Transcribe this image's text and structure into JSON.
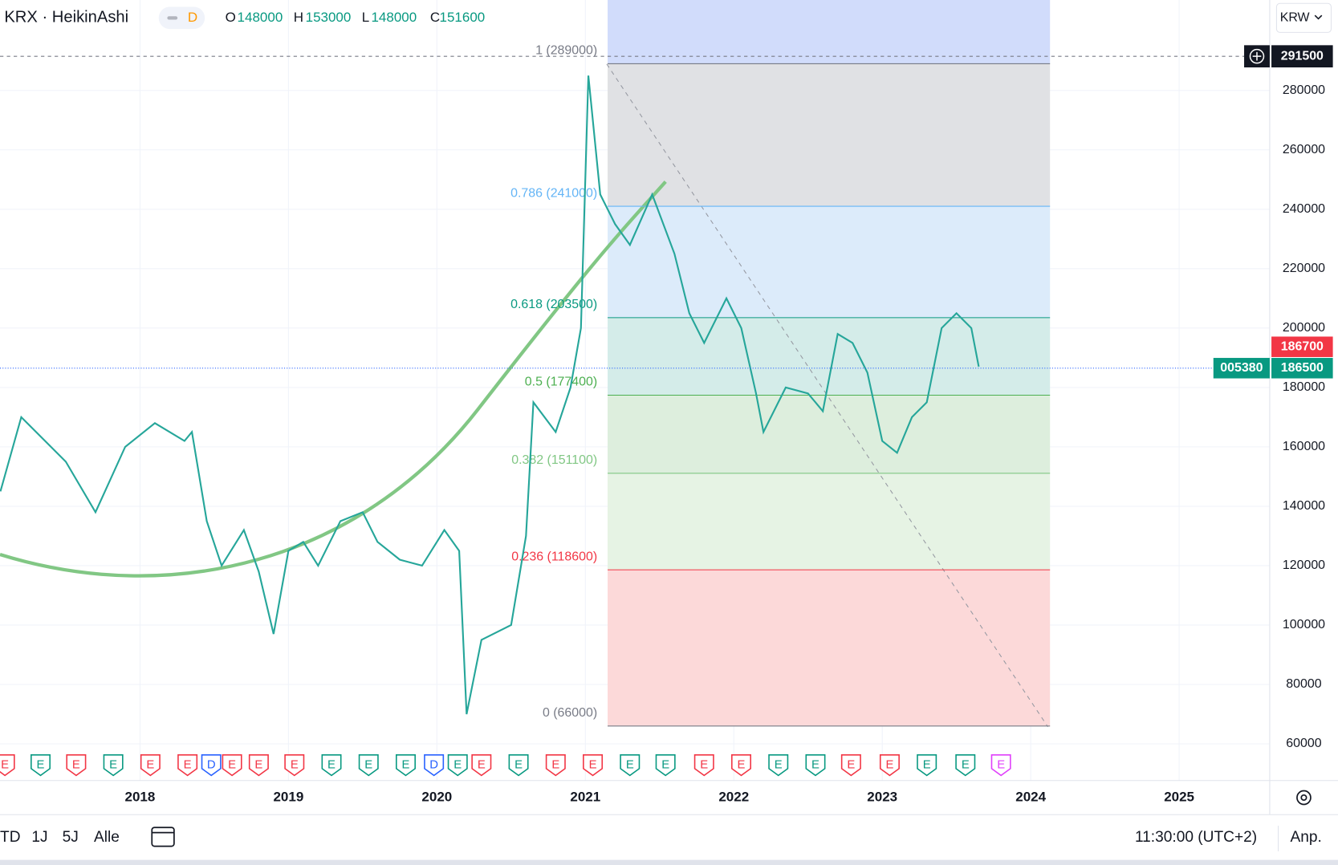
{
  "header": {
    "symbol": "KRX · HeikinAshi",
    "interval": "D",
    "ohlc": [
      {
        "key": "O",
        "value": 148000
      },
      {
        "key": "H",
        "value": 153000
      },
      {
        "key": "L",
        "value": 148000
      },
      {
        "key": "C",
        "value": 151600
      }
    ],
    "currency": "KRW"
  },
  "chart_data": {
    "type": "line",
    "color": "#26a69a",
    "x": [
      2017.06,
      2017.2,
      2017.3,
      2017.5,
      2017.7,
      2017.9,
      2018.1,
      2018.3,
      2018.35,
      2018.45,
      2018.55,
      2018.7,
      2018.8,
      2018.9,
      2019.0,
      2019.1,
      2019.2,
      2019.35,
      2019.5,
      2019.6,
      2019.75,
      2019.9,
      2020.05,
      2020.15,
      2020.2,
      2020.3,
      2020.5,
      2020.6,
      2020.65,
      2020.8,
      2020.9,
      2020.97,
      2021.02,
      2021.1,
      2021.2,
      2021.3,
      2021.45,
      2021.6,
      2021.7,
      2021.8,
      2021.95,
      2022.05,
      2022.15,
      2022.2,
      2022.35,
      2022.5,
      2022.6,
      2022.7,
      2022.8,
      2022.9,
      2023.0,
      2023.1,
      2023.2,
      2023.3,
      2023.4,
      2023.5,
      2023.6,
      2023.65
    ],
    "values": [
      145000,
      170000,
      165000,
      155000,
      138000,
      160000,
      168000,
      162000,
      165000,
      135000,
      120000,
      132000,
      118000,
      97000,
      125000,
      128000,
      120000,
      135000,
      138000,
      128000,
      122000,
      120000,
      132000,
      125000,
      70000,
      95000,
      100000,
      130000,
      175000,
      165000,
      180000,
      200000,
      285000,
      245000,
      235000,
      228000,
      245000,
      225000,
      205000,
      195000,
      210000,
      200000,
      178000,
      165000,
      180000,
      178000,
      172000,
      198000,
      195000,
      185000,
      162000,
      158000,
      170000,
      175000,
      200000,
      205000,
      200000,
      187000
    ],
    "xlim": [
      2017.057,
      2025.61
    ],
    "xticks": [
      2018,
      2019,
      2020,
      2021,
      2022,
      2023,
      2024,
      2025
    ],
    "ylim": [
      47640,
      310460
    ],
    "yticks": [
      60000,
      80000,
      100000,
      120000,
      140000,
      160000,
      180000,
      200000,
      220000,
      240000,
      260000,
      280000
    ],
    "grid": true,
    "fib_levels": [
      {
        "label": "1 (289000)",
        "price": 289000,
        "color": "#787b86",
        "fill": "#e0e1e4"
      },
      {
        "label": "0.786 (241000)",
        "price": 241000,
        "color": "#64b5f6",
        "fill": "#dcebfa"
      },
      {
        "label": "0.618 (203500)",
        "price": 203500,
        "color": "#089981",
        "fill": "#d4ece9"
      },
      {
        "label": "0.5 (177400)",
        "price": 177400,
        "color": "#4caf50",
        "fill": "#ddeedd"
      },
      {
        "label": "0.382 (151100)",
        "price": 151100,
        "color": "#81c784",
        "fill": "#e6f3e4"
      },
      {
        "label": "0.236 (118600)",
        "price": 118600,
        "color": "#f23645",
        "fill": "#fcd9d9"
      },
      {
        "label": "0 (66000)",
        "price": 66000,
        "color": "#787b86",
        "fill": "#fcd9d9"
      }
    ],
    "events": [
      {
        "x": 2017.09,
        "label": "E",
        "color": "#f23645"
      },
      {
        "x": 2017.33,
        "label": "E",
        "color": "#089981"
      },
      {
        "x": 2017.57,
        "label": "E",
        "color": "#f23645"
      },
      {
        "x": 2017.82,
        "label": "E",
        "color": "#089981"
      },
      {
        "x": 2018.07,
        "label": "E",
        "color": "#f23645"
      },
      {
        "x": 2018.32,
        "label": "E",
        "color": "#f23645"
      },
      {
        "x": 2018.48,
        "label": "D",
        "color": "#2962ff"
      },
      {
        "x": 2018.62,
        "label": "E",
        "color": "#f23645"
      },
      {
        "x": 2018.8,
        "label": "E",
        "color": "#f23645"
      },
      {
        "x": 2019.04,
        "label": "E",
        "color": "#f23645"
      },
      {
        "x": 2019.29,
        "label": "E",
        "color": "#089981"
      },
      {
        "x": 2019.54,
        "label": "E",
        "color": "#089981"
      },
      {
        "x": 2019.79,
        "label": "E",
        "color": "#089981"
      },
      {
        "x": 2019.98,
        "label": "D",
        "color": "#2962ff"
      },
      {
        "x": 2020.14,
        "label": "E",
        "color": "#089981"
      },
      {
        "x": 2020.3,
        "label": "E",
        "color": "#f23645"
      },
      {
        "x": 2020.55,
        "label": "E",
        "color": "#089981"
      },
      {
        "x": 2020.8,
        "label": "E",
        "color": "#f23645"
      },
      {
        "x": 2021.05,
        "label": "E",
        "color": "#f23645"
      },
      {
        "x": 2021.3,
        "label": "E",
        "color": "#089981"
      },
      {
        "x": 2021.54,
        "label": "E",
        "color": "#089981"
      },
      {
        "x": 2021.8,
        "label": "E",
        "color": "#f23645"
      },
      {
        "x": 2022.05,
        "label": "E",
        "color": "#f23645"
      },
      {
        "x": 2022.3,
        "label": "E",
        "color": "#089981"
      },
      {
        "x": 2022.55,
        "label": "E",
        "color": "#089981"
      },
      {
        "x": 2022.79,
        "label": "E",
        "color": "#f23645"
      },
      {
        "x": 2023.05,
        "label": "E",
        "color": "#f23645"
      },
      {
        "x": 2023.3,
        "label": "E",
        "color": "#089981"
      },
      {
        "x": 2023.56,
        "label": "E",
        "color": "#089981"
      },
      {
        "x": 2023.8,
        "label": "E",
        "color": "#e040fb"
      }
    ],
    "crosshair_price": 291500,
    "last_price": 186500,
    "prev_close": 186700,
    "ticker_code": "005380"
  },
  "toolbar": {
    "ranges": [
      "TD",
      "1J",
      "5J",
      "Alle"
    ],
    "time": "11:30:00 (UTC+2)",
    "adjust": "Anp."
  }
}
